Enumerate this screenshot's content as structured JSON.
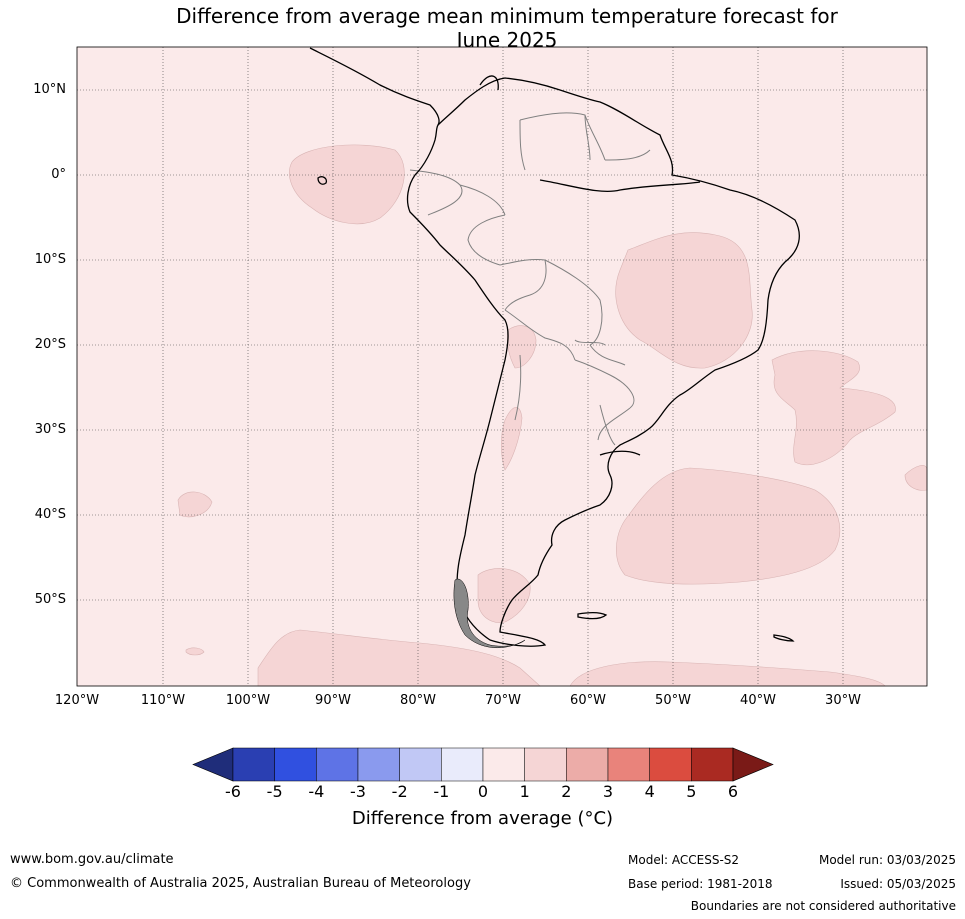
{
  "title_line1": "Difference from average mean minimum temperature forecast for",
  "title_line2": "June 2025",
  "lat_labels": [
    "10°N",
    "0°",
    "10°S",
    "20°S",
    "30°S",
    "40°S",
    "50°S"
  ],
  "lon_labels": [
    "120°W",
    "110°W",
    "100°W",
    "90°W",
    "80°W",
    "70°W",
    "60°W",
    "50°W",
    "40°W",
    "30°W"
  ],
  "colorbar": {
    "ticks": [
      "-6",
      "-5",
      "-4",
      "-3",
      "-2",
      "-1",
      "0",
      "1",
      "2",
      "3",
      "4",
      "5",
      "6"
    ],
    "colors": [
      "#1f2d7a",
      "#2a3fb2",
      "#3050e0",
      "#5e73e6",
      "#8a9aee",
      "#c1c8f5",
      "#e9ebfb",
      "#fbeaea",
      "#f5d5d5",
      "#ecaca8",
      "#e9837b",
      "#db4c3f",
      "#aa2a22",
      "#7a1a17"
    ],
    "title": "Difference from average (°C)"
  },
  "map": {
    "background": "#fbeaea",
    "anomaly_fill": "#f5d5d5",
    "coast": "#000000",
    "borders": "#808080"
  },
  "footer": {
    "url": "www.bom.gov.au/climate",
    "copyright": "© Commonwealth of Australia 2025, Australian Bureau of Meteorology",
    "model": "Model: ACCESS-S2",
    "base_period": "Base period: 1981-2018",
    "model_run": "Model run: 03/03/2025",
    "issued": "Issued: 05/03/2025",
    "disclaimer": "Boundaries are not considered authoritative"
  }
}
